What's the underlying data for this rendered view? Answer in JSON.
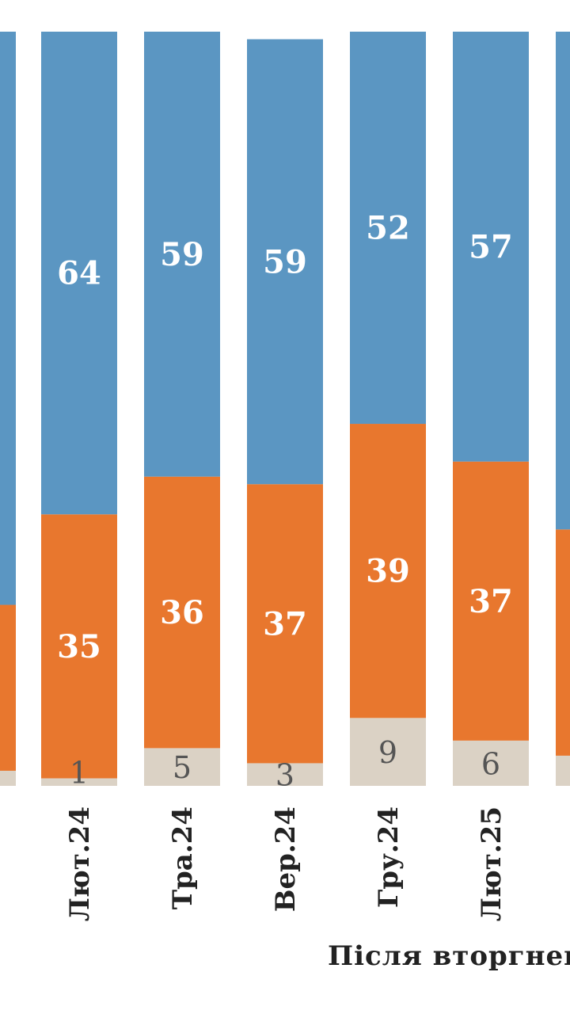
{
  "chart_data": {
    "type": "bar",
    "stacked": true,
    "orientation": "vertical",
    "xlabel": "Після вторгнен",
    "categories": [
      "",
      "Лют.24",
      "Тра.24",
      "Вер.24",
      "Гру.24",
      "Лют.25",
      ""
    ],
    "series": [
      {
        "color": "#dbd2c5",
        "values": [
          2,
          1,
          5,
          3,
          9,
          6,
          4
        ],
        "labels": [
          "",
          "1",
          "5",
          "3",
          "9",
          "6",
          ""
        ]
      },
      {
        "color": "#e8772e",
        "values": [
          22,
          35,
          36,
          37,
          39,
          37,
          30
        ],
        "labels": [
          "",
          "35",
          "36",
          "37",
          "39",
          "37",
          ""
        ]
      },
      {
        "color": "#5b96c2",
        "values": [
          76,
          64,
          59,
          59,
          52,
          57,
          66
        ],
        "labels": [
          "",
          "64",
          "59",
          "59",
          "52",
          "57",
          ""
        ]
      }
    ],
    "ylim": [
      0,
      100
    ]
  }
}
